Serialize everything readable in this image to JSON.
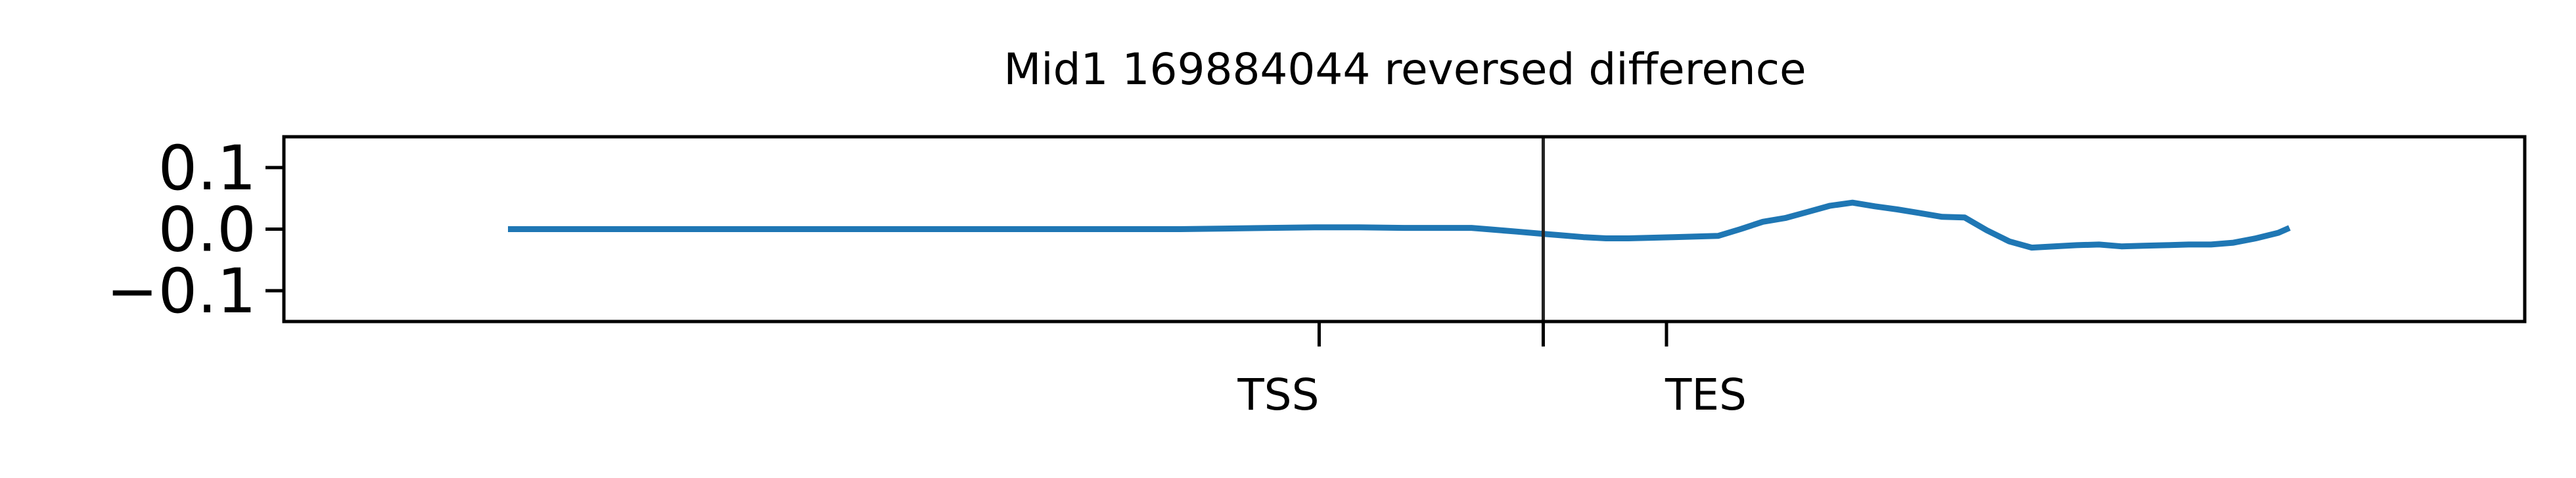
{
  "chart_data": {
    "type": "line",
    "title": "Mid1 169884044 reversed difference",
    "xlabel": "",
    "ylabel": "",
    "ylim": [
      -0.15,
      0.15
    ],
    "xlim": [
      -1000,
      9000
    ],
    "yticks": [
      {
        "value": 0.1,
        "label": "0.1"
      },
      {
        "value": 0.0,
        "label": "0.0"
      },
      {
        "value": -0.1,
        "label": "−0.1"
      }
    ],
    "xticks": [
      {
        "value": 3620,
        "label": "TSS"
      },
      {
        "value": 4620,
        "label": ""
      },
      {
        "value": 5170,
        "label": "TES"
      }
    ],
    "vline": {
      "x": 4620
    },
    "grid": false,
    "legend": "none",
    "colors": {
      "series": "#1f77b4",
      "axes": "#000000",
      "vline": "#222222"
    },
    "series": [
      {
        "x": [
          0,
          500,
          1000,
          1500,
          2000,
          2500,
          3000,
          3200,
          3400,
          3600,
          3800,
          4000,
          4100,
          4200,
          4300,
          4400,
          4500,
          4600,
          4700,
          4800,
          4900,
          5000,
          5100,
          5200,
          5300,
          5400,
          5500,
          5600,
          5700,
          5800,
          5900,
          6000,
          6100,
          6200,
          6300,
          6400,
          6500,
          6600,
          6700,
          6800,
          6900,
          7000,
          7100,
          7200,
          7300,
          7400,
          7500,
          7600,
          7700,
          7800,
          7900,
          7950
        ],
        "y": [
          0.0,
          0.0,
          0.0,
          0.0,
          0.0,
          0.0,
          0.0,
          0.001,
          0.002,
          0.003,
          0.003,
          0.002,
          0.002,
          0.002,
          0.002,
          -0.001,
          -0.004,
          -0.007,
          -0.01,
          -0.013,
          -0.015,
          -0.015,
          -0.014,
          -0.013,
          -0.012,
          -0.011,
          0.0,
          0.012,
          0.018,
          0.028,
          0.038,
          0.043,
          0.037,
          0.032,
          0.026,
          0.02,
          0.019,
          -0.002,
          -0.02,
          -0.03,
          -0.028,
          -0.026,
          -0.025,
          -0.028,
          -0.027,
          -0.026,
          -0.025,
          -0.025,
          -0.022,
          -0.015,
          -0.006,
          0.002
        ]
      }
    ]
  }
}
